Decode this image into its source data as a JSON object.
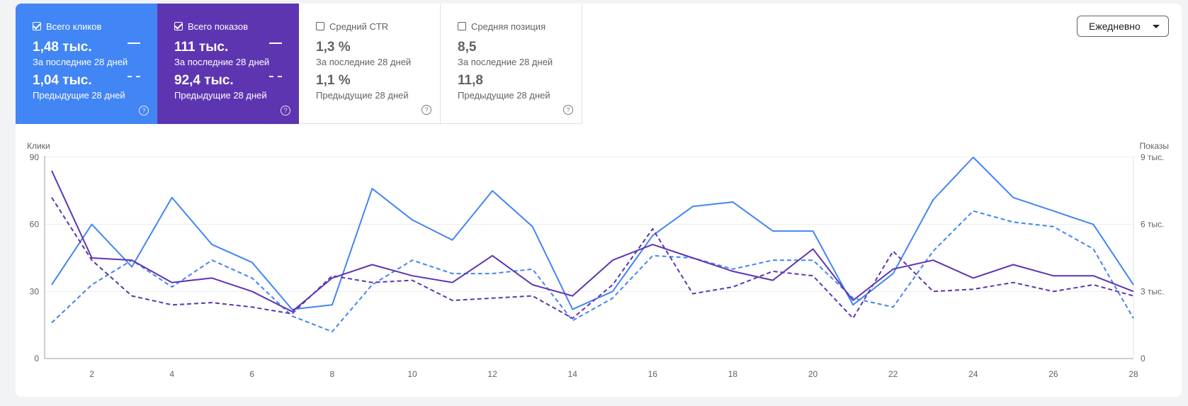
{
  "cards": [
    {
      "label": "Всего кликов",
      "checked": true,
      "current_value": "1,48 тыс.",
      "current_period": "За последние 28 дней",
      "previous_value": "1,04 тыс.",
      "previous_period": "Предыдущие 28 дней",
      "color": "#4285f4",
      "help_icon": "help-icon"
    },
    {
      "label": "Всего показов",
      "checked": true,
      "current_value": "111 тыс.",
      "current_period": "За последние 28 дней",
      "previous_value": "92,4 тыс.",
      "previous_period": "Предыдущие 28 дней",
      "color": "#5e35b1",
      "help_icon": "help-icon"
    },
    {
      "label": "Средний CTR",
      "checked": false,
      "current_value": "1,3 %",
      "current_period": "За последние 28 дней",
      "previous_value": "1,1 %",
      "previous_period": "Предыдущие 28 дней",
      "help_icon": "help-icon"
    },
    {
      "label": "Средняя позиция",
      "checked": false,
      "current_value": "8,5",
      "current_period": "За последние 28 дней",
      "previous_value": "11,8",
      "previous_period": "Предыдущие 28 дней",
      "help_icon": "help-icon"
    }
  ],
  "granularity": {
    "selected": "Ежедневно"
  },
  "chart_data": {
    "type": "line",
    "left_axis_title": "Клики",
    "right_axis_title": "Показы",
    "left_ylim": [
      0,
      90
    ],
    "right_ylim": [
      0,
      9000
    ],
    "left_ticks": [
      "0",
      "30",
      "60",
      "90"
    ],
    "right_ticks": [
      "0",
      "3 тыс.",
      "6 тыс.",
      "9 тыс."
    ],
    "x": [
      1,
      2,
      3,
      4,
      5,
      6,
      7,
      8,
      9,
      10,
      11,
      12,
      13,
      14,
      15,
      16,
      17,
      18,
      19,
      20,
      21,
      22,
      23,
      24,
      25,
      26,
      27,
      28
    ],
    "x_tick_labels": [
      "2",
      "4",
      "6",
      "8",
      "10",
      "12",
      "14",
      "16",
      "18",
      "20",
      "22",
      "24",
      "26",
      "28"
    ],
    "grid": true,
    "series": [
      {
        "name": "Всего кликов",
        "period": "За последние 28 дней",
        "axis": "left",
        "style": "solid",
        "color": "#4285f4",
        "values": [
          33,
          60,
          41,
          72,
          51,
          43,
          22,
          24,
          76,
          62,
          53,
          75,
          59,
          22,
          30,
          55,
          68,
          70,
          57,
          57,
          24,
          38,
          71,
          90,
          72,
          66,
          60,
          33
        ]
      },
      {
        "name": "Всего кликов",
        "period": "Предыдущие 28 дней",
        "axis": "left",
        "style": "dashed",
        "color": "#4285f4",
        "values": [
          16,
          33,
          44,
          32,
          44,
          36,
          19,
          12,
          33,
          44,
          38,
          38,
          40,
          17,
          27,
          46,
          45,
          40,
          44,
          44,
          27,
          23,
          48,
          66,
          61,
          59,
          49,
          18
        ]
      },
      {
        "name": "Всего показов",
        "period": "За последние 28 дней",
        "axis": "right",
        "style": "solid",
        "color": "#5e35b1",
        "values": [
          8400,
          4500,
          4400,
          3400,
          3600,
          3000,
          2100,
          3600,
          4200,
          3700,
          3400,
          4600,
          3300,
          2800,
          4400,
          5100,
          4500,
          3900,
          3500,
          4900,
          2600,
          4000,
          4400,
          3600,
          4200,
          3700,
          3700,
          3000
        ]
      },
      {
        "name": "Всего показов",
        "period": "Предыдущие 28 дней",
        "axis": "right",
        "style": "dashed",
        "color": "#5e35b1",
        "values": [
          7200,
          4400,
          2800,
          2400,
          2500,
          2300,
          2000,
          3700,
          3400,
          3500,
          2600,
          2700,
          2800,
          1800,
          3300,
          5800,
          2900,
          3200,
          3900,
          3700,
          1800,
          4800,
          3000,
          3100,
          3400,
          3000,
          3300,
          2800
        ]
      }
    ]
  }
}
